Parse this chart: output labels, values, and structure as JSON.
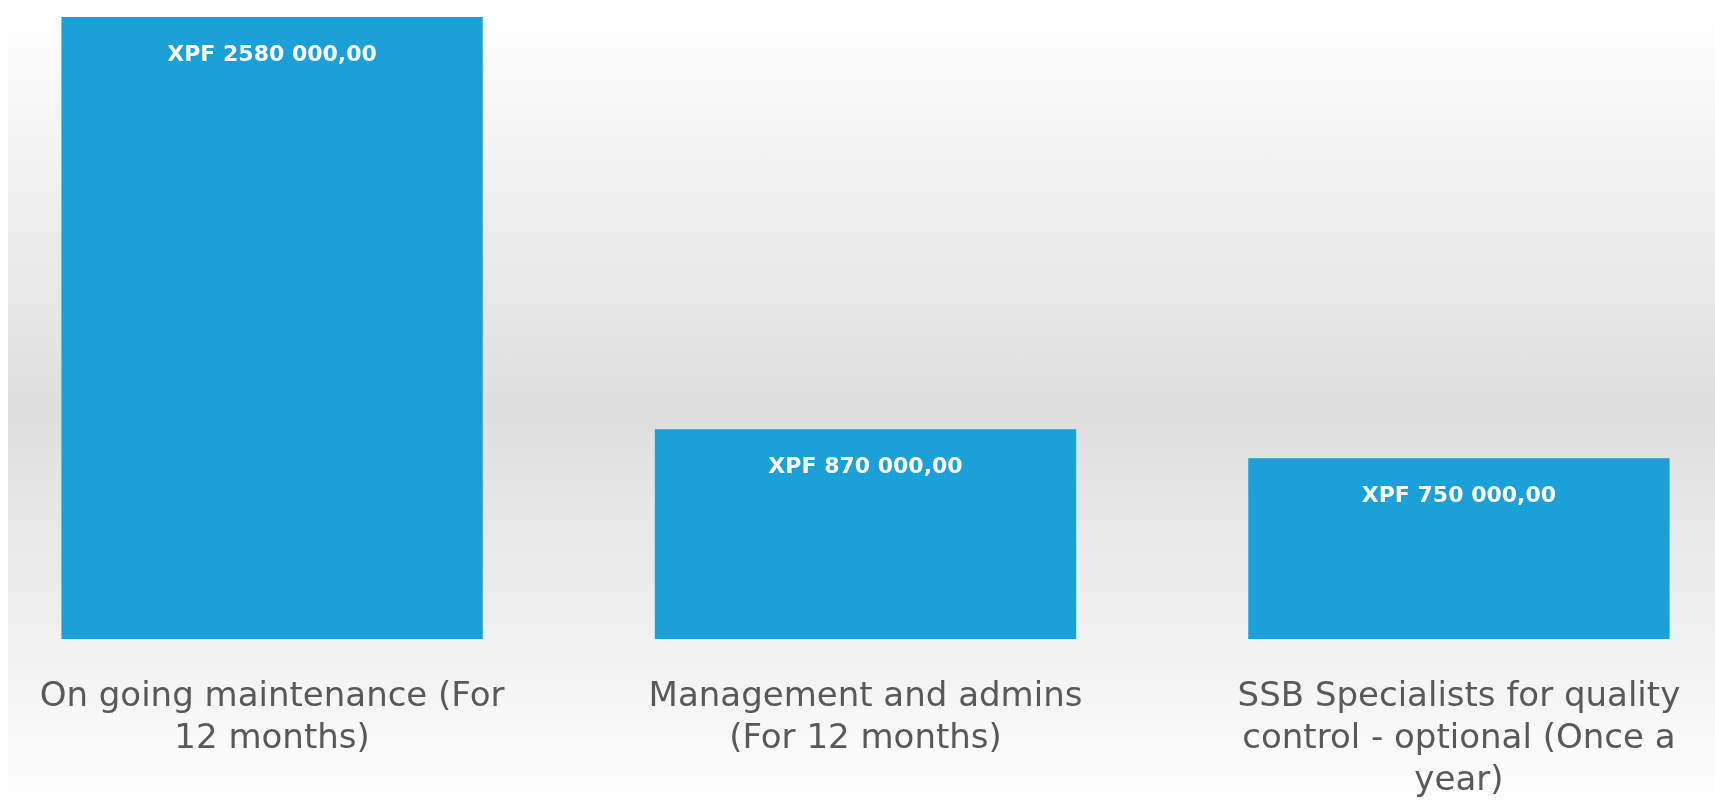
{
  "chart_data": {
    "type": "bar",
    "categories": [
      "On going maintenance (For 12 months)",
      "Management and admins (For 12 months)",
      "SSB Specialists for quality control - optional (Once a year)"
    ],
    "values": [
      2580000,
      870000,
      750000
    ],
    "value_labels": [
      "XPF 2580 000,00",
      "XPF 870 000,00",
      "XPF 750 000,00"
    ],
    "color": "#1ba0d8"
  }
}
